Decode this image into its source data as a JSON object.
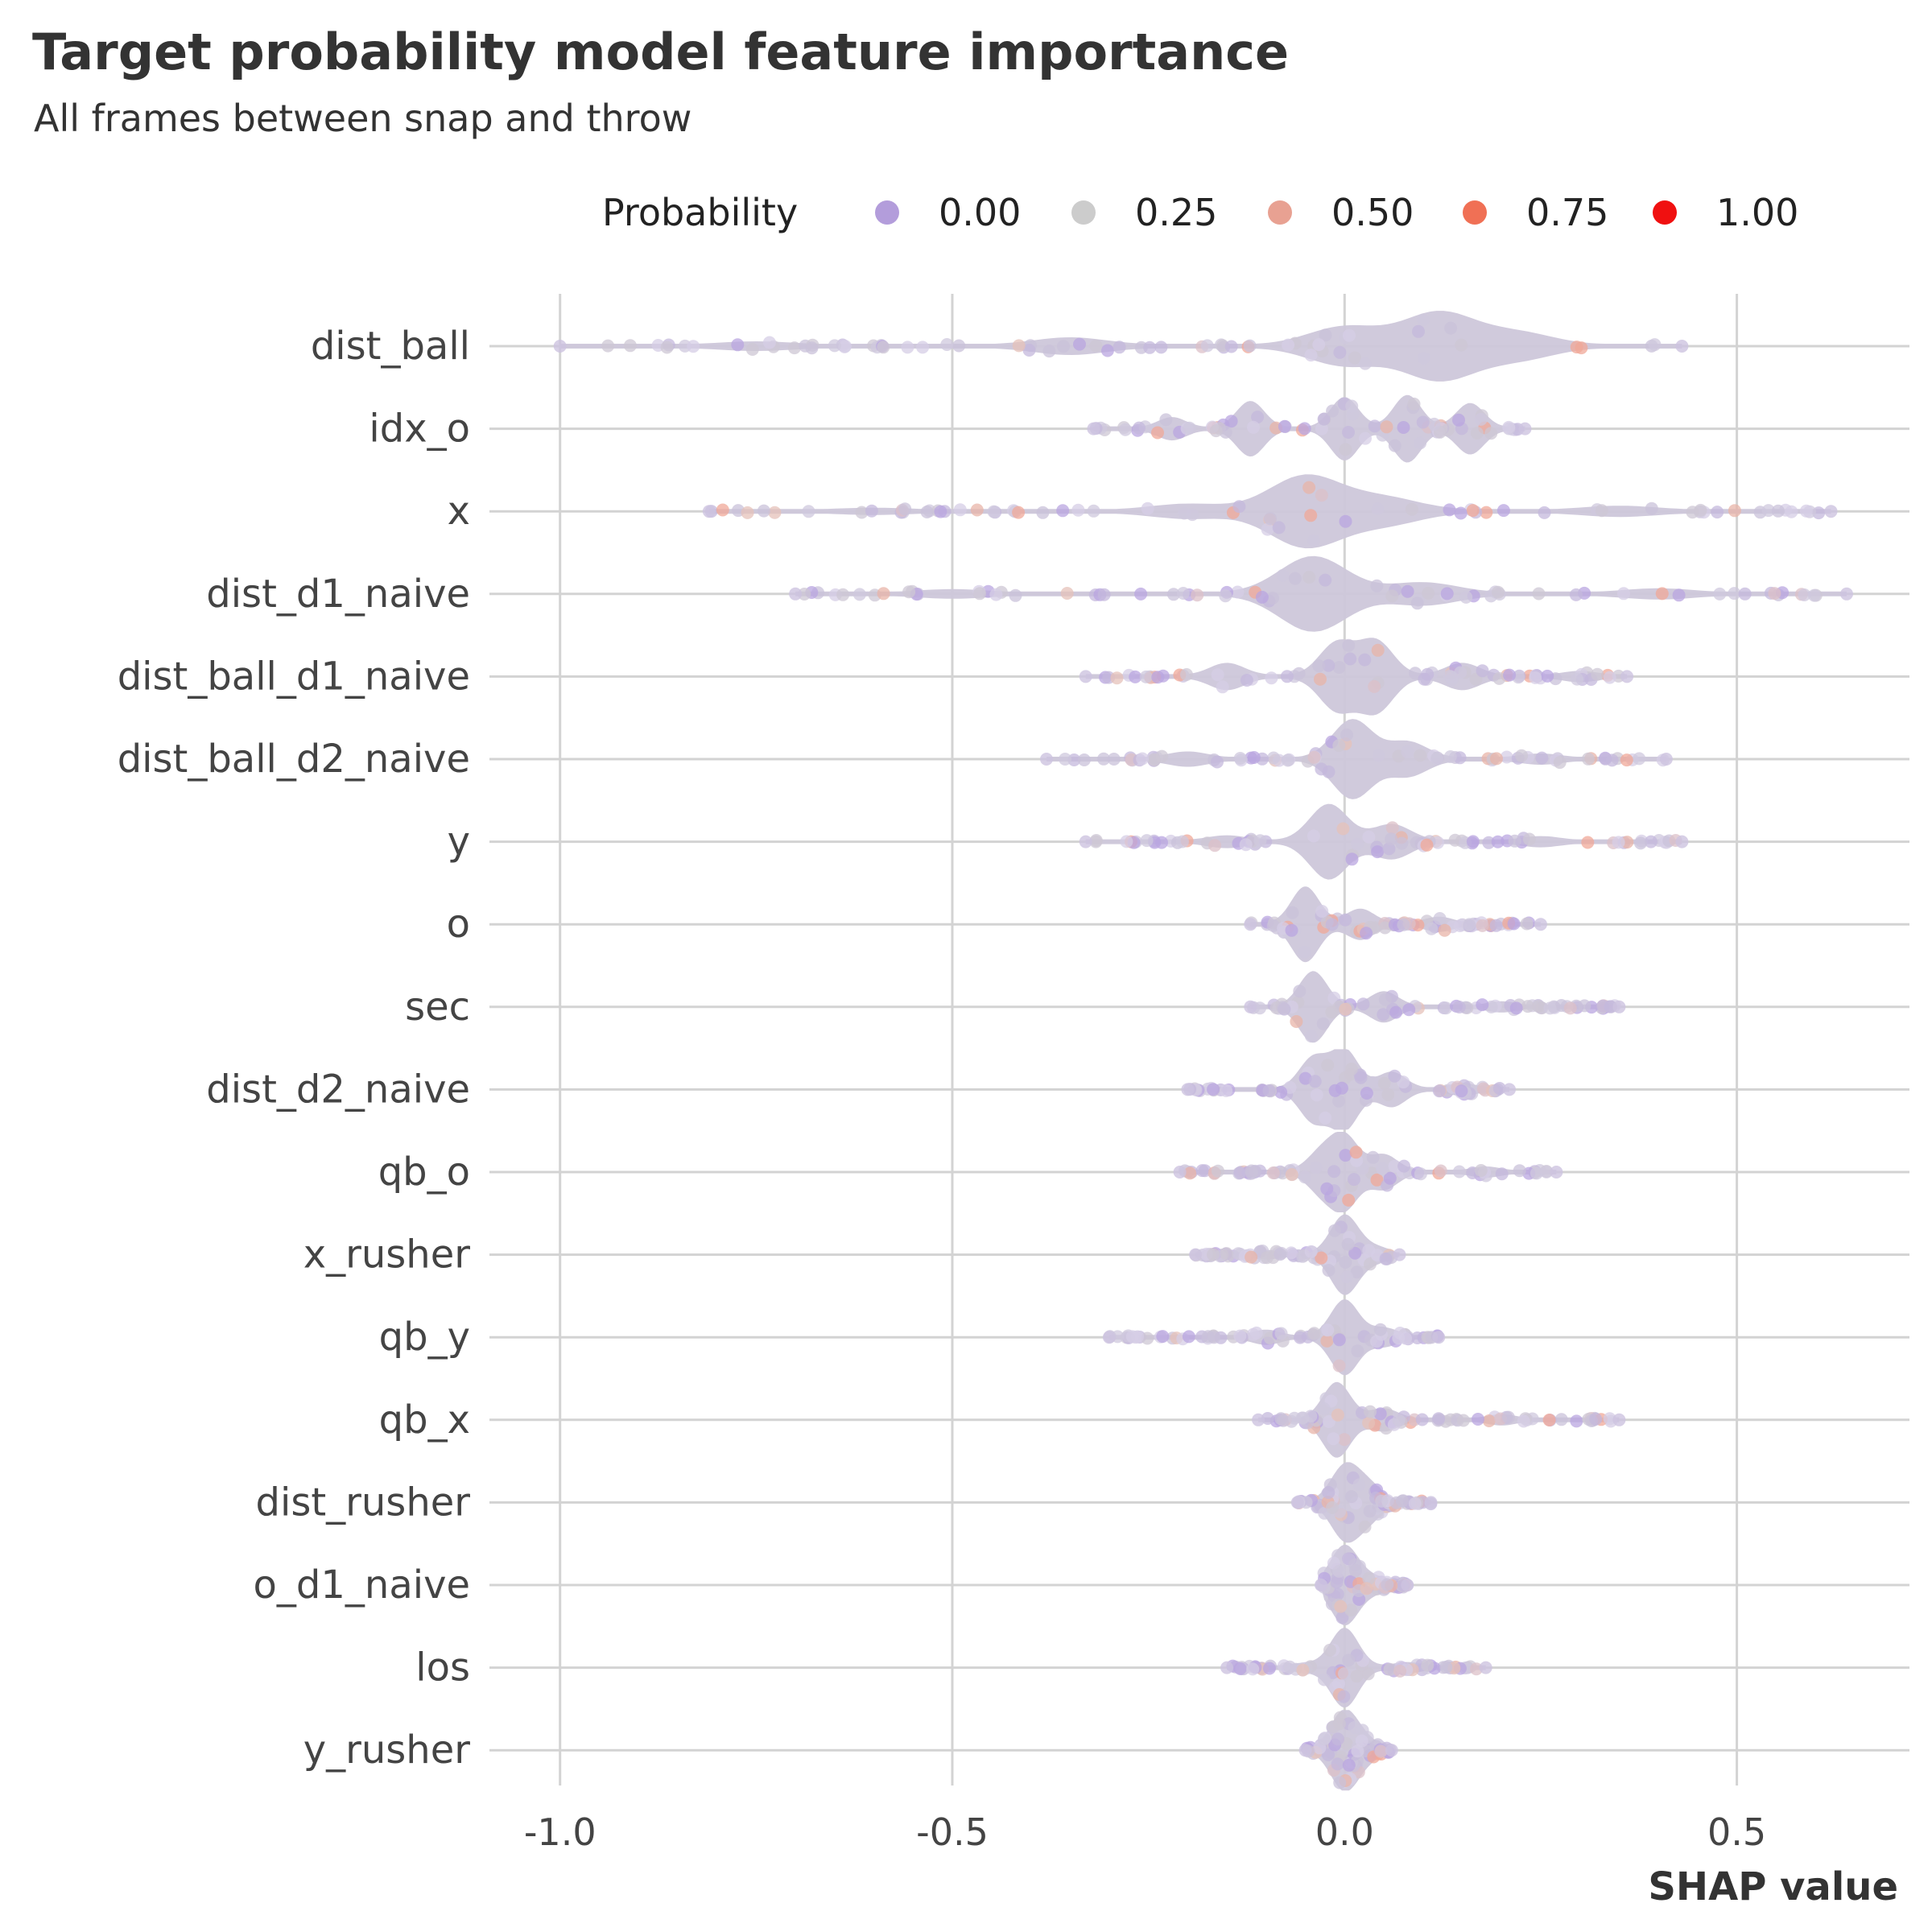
{
  "chart_data": {
    "type": "scatter",
    "title": "Target probability model feature importance",
    "subtitle": "All frames between snap and throw",
    "xlabel": "SHAP value",
    "ylabel": "",
    "xlim": [
      -1.09,
      0.72
    ],
    "x_ticks": [
      {
        "value": -1.0,
        "label": "-1.0"
      },
      {
        "value": -0.5,
        "label": "-0.5"
      },
      {
        "value": 0.0,
        "label": "0.0"
      },
      {
        "value": 0.5,
        "label": "0.5"
      }
    ],
    "grid": true,
    "legend": {
      "title": "Probability",
      "position": "top",
      "entries": [
        {
          "label": "0.00",
          "color": "#b39ddb"
        },
        {
          "label": "0.25",
          "color": "#cccccc"
        },
        {
          "label": "0.50",
          "color": "#e8a192"
        },
        {
          "label": "0.75",
          "color": "#f07055"
        },
        {
          "label": "1.00",
          "color": "#f01010"
        }
      ]
    },
    "categories": [
      "dist_ball",
      "idx_o",
      "x",
      "dist_d1_naive",
      "dist_ball_d1_naive",
      "dist_ball_d2_naive",
      "y",
      "o",
      "sec",
      "dist_d2_naive",
      "qb_o",
      "x_rusher",
      "qb_y",
      "qb_x",
      "dist_rusher",
      "o_d1_naive",
      "los",
      "y_rusher"
    ],
    "distributions": [
      {
        "feature": "dist_ball",
        "min": -1.0,
        "max": 0.43,
        "peaks": [
          [
            -0.75,
            0.08
          ],
          [
            -0.35,
            0.18
          ],
          [
            0.0,
            0.45
          ],
          [
            0.12,
            0.8
          ],
          [
            0.22,
            0.3
          ]
        ]
      },
      {
        "feature": "idx_o",
        "min": -0.32,
        "max": 0.23,
        "peaks": [
          [
            -0.22,
            0.25
          ],
          [
            -0.12,
            0.65
          ],
          [
            0.0,
            0.75
          ],
          [
            0.08,
            0.8
          ],
          [
            0.16,
            0.6
          ]
        ]
      },
      {
        "feature": "x",
        "min": -0.81,
        "max": 0.62,
        "peaks": [
          [
            -0.6,
            0.05
          ],
          [
            -0.2,
            0.15
          ],
          [
            -0.05,
            0.85
          ],
          [
            0.05,
            0.3
          ],
          [
            0.35,
            0.1
          ]
        ]
      },
      {
        "feature": "dist_d1_naive",
        "min": -0.7,
        "max": 0.64,
        "peaks": [
          [
            -0.5,
            0.08
          ],
          [
            -0.04,
            0.9
          ],
          [
            0.1,
            0.25
          ],
          [
            0.4,
            0.1
          ]
        ]
      },
      {
        "feature": "dist_ball_d1_naive",
        "min": -0.33,
        "max": 0.36,
        "peaks": [
          [
            -0.15,
            0.3
          ],
          [
            -0.01,
            0.8
          ],
          [
            0.04,
            0.85
          ],
          [
            0.15,
            0.3
          ],
          [
            0.3,
            0.1
          ]
        ]
      },
      {
        "feature": "dist_ball_d2_naive",
        "min": -0.38,
        "max": 0.41,
        "peaks": [
          [
            -0.2,
            0.15
          ],
          [
            0.01,
            0.95
          ],
          [
            0.08,
            0.4
          ],
          [
            0.25,
            0.1
          ]
        ]
      },
      {
        "feature": "y",
        "min": -0.33,
        "max": 0.43,
        "peaks": [
          [
            -0.15,
            0.12
          ],
          [
            -0.02,
            0.9
          ],
          [
            0.06,
            0.4
          ],
          [
            0.25,
            0.1
          ]
        ]
      },
      {
        "feature": "o",
        "min": -0.12,
        "max": 0.25,
        "peaks": [
          [
            -0.05,
            0.9
          ],
          [
            0.02,
            0.35
          ],
          [
            0.12,
            0.15
          ]
        ]
      },
      {
        "feature": "sec",
        "min": -0.12,
        "max": 0.35,
        "peaks": [
          [
            -0.04,
            0.85
          ],
          [
            0.05,
            0.35
          ],
          [
            0.2,
            0.1
          ]
        ]
      },
      {
        "feature": "dist_d2_naive",
        "min": -0.2,
        "max": 0.21,
        "peaks": [
          [
            -0.04,
            0.75
          ],
          [
            0.0,
            0.95
          ],
          [
            0.06,
            0.4
          ],
          [
            0.15,
            0.12
          ]
        ]
      },
      {
        "feature": "qb_o",
        "min": -0.21,
        "max": 0.27,
        "peaks": [
          [
            -0.03,
            0.45
          ],
          [
            0.0,
            0.85
          ],
          [
            0.05,
            0.4
          ],
          [
            0.18,
            0.1
          ]
        ]
      },
      {
        "feature": "x_rusher",
        "min": -0.19,
        "max": 0.07,
        "peaks": [
          [
            -0.1,
            0.08
          ],
          [
            0.0,
            0.95
          ],
          [
            0.04,
            0.15
          ]
        ]
      },
      {
        "feature": "qb_y",
        "min": -0.3,
        "max": 0.12,
        "peaks": [
          [
            -0.1,
            0.15
          ],
          [
            0.0,
            0.9
          ],
          [
            0.05,
            0.2
          ]
        ]
      },
      {
        "feature": "qb_x",
        "min": -0.11,
        "max": 0.35,
        "peaks": [
          [
            -0.01,
            0.9
          ],
          [
            0.05,
            0.25
          ],
          [
            0.2,
            0.1
          ]
        ]
      },
      {
        "feature": "dist_rusher",
        "min": -0.06,
        "max": 0.11,
        "peaks": [
          [
            0.0,
            0.85
          ],
          [
            0.03,
            0.4
          ]
        ]
      },
      {
        "feature": "o_d1_naive",
        "min": -0.03,
        "max": 0.08,
        "peaks": [
          [
            0.0,
            0.95
          ],
          [
            0.04,
            0.15
          ]
        ]
      },
      {
        "feature": "los",
        "min": -0.15,
        "max": 0.18,
        "peaks": [
          [
            -0.05,
            0.08
          ],
          [
            0.0,
            0.95
          ],
          [
            0.08,
            0.1
          ]
        ]
      },
      {
        "feature": "y_rusher",
        "min": -0.05,
        "max": 0.06,
        "peaks": [
          [
            0.0,
            0.95
          ],
          [
            0.03,
            0.15
          ]
        ]
      }
    ]
  }
}
